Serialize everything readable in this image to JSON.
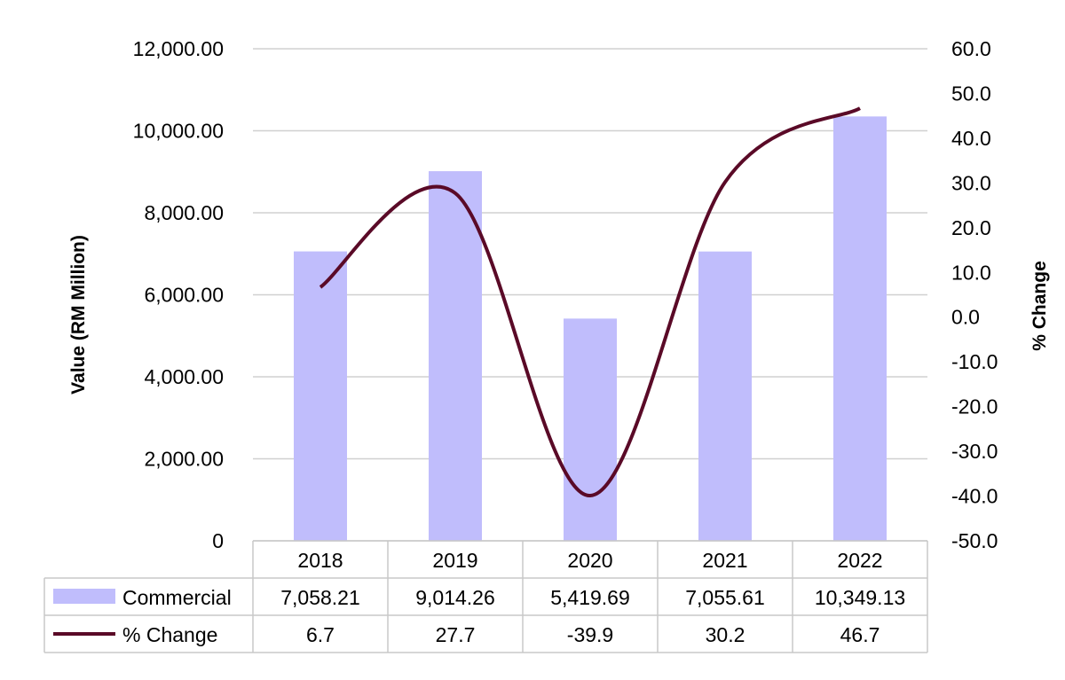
{
  "chart_data": {
    "type": "bar",
    "categories": [
      "2018",
      "2019",
      "2020",
      "2021",
      "2022"
    ],
    "series": [
      {
        "name": "Commercial",
        "type": "bar",
        "axis": "left",
        "values": [
          7058.21,
          9014.26,
          5419.69,
          7055.61,
          10349.13
        ],
        "labels": [
          "7,058.21",
          "9,014.26",
          "5,419.69",
          "7,055.61",
          "10,349.13"
        ]
      },
      {
        "name": "% Change",
        "type": "line",
        "axis": "right",
        "values": [
          6.7,
          27.7,
          -39.9,
          30.2,
          46.7
        ],
        "labels": [
          "6.7",
          "27.7",
          "-39.9",
          "30.2",
          "46.7"
        ]
      }
    ],
    "ylabel": "Value (RM Million)",
    "y2label": "% Change",
    "ylim": [
      0,
      12000
    ],
    "y2lim": [
      -50,
      60
    ],
    "yticks": [
      "0",
      "2,000.00",
      "4,000.00",
      "6,000.00",
      "8,000.00",
      "10,000.00",
      "12,000.00"
    ],
    "y2ticks": [
      "-50.0",
      "-40.0",
      "-30.0",
      "-20.0",
      "-10.0",
      "0.0",
      "10.0",
      "20.0",
      "30.0",
      "40.0",
      "50.0",
      "60.0"
    ],
    "grid": true,
    "legend": "data-table",
    "colors": {
      "bar": "#c0bdfc",
      "line": "#5a0a27",
      "grid": "#d0d0d0",
      "table_border": "#c8c8c8"
    }
  }
}
